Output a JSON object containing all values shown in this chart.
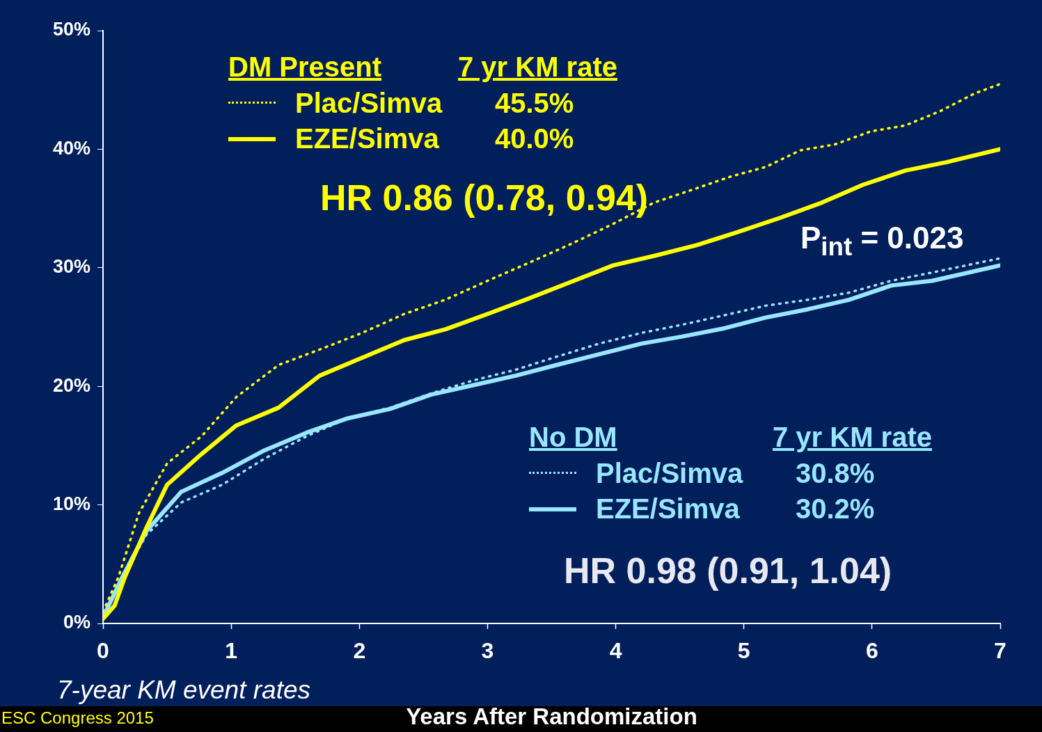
{
  "chart_data": {
    "type": "line",
    "xlabel": "Years After Randomization",
    "xlim": [
      0,
      7
    ],
    "xticks": [
      0,
      1,
      2,
      3,
      4,
      5,
      6,
      7
    ],
    "ylim": [
      0,
      50
    ],
    "yticks": [
      {
        "value": 0,
        "label": "0%"
      },
      {
        "value": 10,
        "label": "10%"
      },
      {
        "value": 20,
        "label": "20%"
      },
      {
        "value": 30,
        "label": "30%"
      },
      {
        "value": 40,
        "label": "40%"
      },
      {
        "value": 50,
        "label": "50%"
      }
    ],
    "grid": false,
    "legend": "top left",
    "marker": "none",
    "series": [
      {
        "name": "Plac/Simva",
        "color": "#ffff00",
        "line_style": "dotted",
        "x": [
          0,
          0.12,
          0.28,
          0.5,
          0.77,
          1.04,
          1.37,
          1.69,
          2.02,
          2.35,
          2.67,
          3.0,
          3.32,
          3.65,
          3.98,
          4.3,
          4.63,
          4.9,
          5.17,
          5.44,
          5.71,
          5.99,
          6.26,
          6.53,
          6.8,
          7.0
        ],
        "values": [
          1.0,
          3.9,
          9.3,
          13.5,
          15.8,
          19.1,
          21.8,
          23.1,
          24.5,
          26.1,
          27.3,
          28.9,
          30.4,
          32.0,
          33.7,
          35.5,
          36.7,
          37.7,
          38.5,
          39.9,
          40.4,
          41.5,
          42.0,
          43.2,
          44.7,
          45.5
        ]
      },
      {
        "name": "EZE/Simva",
        "color": "#ffff00",
        "line_style": "solid",
        "x": [
          0,
          0.09,
          0.17,
          0.34,
          0.5,
          0.77,
          1.04,
          1.37,
          1.69,
          2.02,
          2.35,
          2.67,
          3.0,
          3.32,
          3.65,
          3.98,
          4.3,
          4.63,
          4.95,
          5.28,
          5.61,
          5.93,
          6.26,
          6.58,
          7.0
        ],
        "values": [
          0.4,
          1.5,
          3.9,
          8.1,
          11.7,
          14.3,
          16.7,
          18.2,
          20.9,
          22.4,
          23.9,
          24.8,
          26.1,
          27.4,
          28.8,
          30.2,
          31.0,
          31.9,
          33.0,
          34.2,
          35.5,
          37.0,
          38.2,
          38.9,
          40.0
        ]
      },
      {
        "name": "Plac/Simva",
        "color": "#99e6ff",
        "line_style": "dotted",
        "x": [
          0,
          0.15,
          0.34,
          0.61,
          0.93,
          1.26,
          1.59,
          1.91,
          2.24,
          2.56,
          2.89,
          3.22,
          3.54,
          3.87,
          4.2,
          4.52,
          4.85,
          5.17,
          5.5,
          5.82,
          6.15,
          6.47,
          7.0
        ],
        "values": [
          0.7,
          3.9,
          7.5,
          10.2,
          11.7,
          13.9,
          15.8,
          17.3,
          18.2,
          19.4,
          20.5,
          21.4,
          22.5,
          23.6,
          24.5,
          25.2,
          26.0,
          26.8,
          27.3,
          27.9,
          28.9,
          29.6,
          30.8
        ]
      },
      {
        "name": "EZE/Simva",
        "color": "#99e6ff",
        "line_style": "solid",
        "x": [
          0,
          0.15,
          0.34,
          0.61,
          0.93,
          1.26,
          1.59,
          1.91,
          2.24,
          2.56,
          2.89,
          3.22,
          3.54,
          3.87,
          4.2,
          4.52,
          4.85,
          5.17,
          5.5,
          5.82,
          6.15,
          6.47,
          7.0
        ],
        "values": [
          0.5,
          3.9,
          7.8,
          11.1,
          12.7,
          14.6,
          16.1,
          17.3,
          18.1,
          19.3,
          20.1,
          20.9,
          21.8,
          22.7,
          23.6,
          24.2,
          24.9,
          25.8,
          26.5,
          27.3,
          28.5,
          28.9,
          30.2
        ]
      }
    ],
    "annotations": [
      "DM  Present",
      "7 yr KM rate",
      "45.5%",
      "40.0%",
      "HR 0.86 (0.78, 0.94)",
      "No DM",
      "7 yr KM rate",
      "30.8%",
      "30.2%",
      "HR 0.98 (0.91, 1.04)",
      "P$_{int}$ = 0.023",
      "7-year KM event rates",
      "ESC Congress 2015"
    ]
  }
}
